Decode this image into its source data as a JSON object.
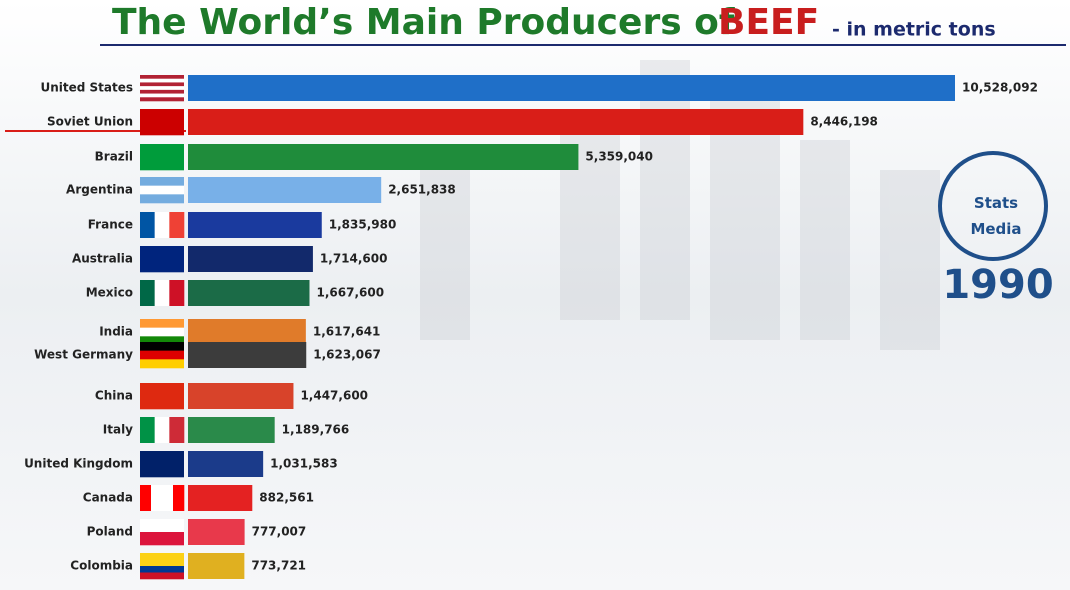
{
  "chart_data": {
    "type": "bar",
    "orientation": "horizontal",
    "title": "The World’s Main Producers of",
    "title_highlight": "BEEF",
    "subtitle": "- in metric tons",
    "year": "1990",
    "logo": [
      "Stats",
      "Media"
    ],
    "categories": [
      "United States",
      "Soviet Union",
      "Brazil",
      "Argentina",
      "France",
      "Australia",
      "Mexico",
      "India",
      "West Germany",
      "China",
      "Italy",
      "United Kingdom",
      "Canada",
      "Poland",
      "Colombia"
    ],
    "values": [
      10528092,
      8446198,
      5359040,
      2651838,
      1835980,
      1714600,
      1667600,
      1617641,
      1623067,
      1447600,
      1189766,
      1031583,
      882561,
      777007,
      773721
    ],
    "value_labels": [
      "10,528,092",
      "8,446,198",
      "5,359,040",
      "2,651,838",
      "1,835,980",
      "1,714,600",
      "1,667,600",
      "1,617,641",
      "1,623,067",
      "1,447,600",
      "1,189,766",
      "1,031,583",
      "882,561",
      "777,007",
      "773,721"
    ],
    "colors": [
      "#1f6fc8",
      "#d91e18",
      "#1f8c3b",
      "#78b0e8",
      "#1a3a9e",
      "#12296b",
      "#1b6b47",
      "#e07b2a",
      "#3c3c3c",
      "#d8432a",
      "#2a8a4a",
      "#1b3b8a",
      "#e42222",
      "#e8394b",
      "#e0b020"
    ]
  }
}
